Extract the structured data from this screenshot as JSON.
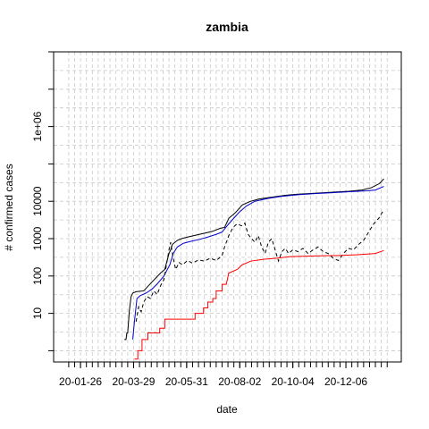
{
  "chart_data": {
    "type": "line",
    "title": "zambia",
    "xlabel": "date",
    "ylabel": "# confirmed cases",
    "y_scale": "log10",
    "ylim": [
      0.5,
      100000000
    ],
    "y_ticks": [
      10,
      100,
      1000,
      10000,
      1000000
    ],
    "y_tick_labels": [
      "10",
      "100",
      "1000",
      "10000",
      "1e+06"
    ],
    "x_tick_labels": [
      "20-01-26",
      "20-03-29",
      "20-05-31",
      "20-08-02",
      "20-10-04",
      "20-12-06"
    ],
    "xlim": [
      "2020-01-10",
      "2021-01-28"
    ],
    "x_minor_tick_interval_days": 7,
    "grid": true,
    "series": [
      {
        "line_style": "solid",
        "color": "#000000",
        "points": [
          [
            "2020-03-18",
            2
          ],
          [
            "2020-03-20",
            2
          ],
          [
            "2020-03-21",
            3
          ],
          [
            "2020-03-22",
            3
          ],
          [
            "2020-03-24",
            12
          ],
          [
            "2020-03-26",
            28
          ],
          [
            "2020-03-28",
            35
          ],
          [
            "2020-04-01",
            38
          ],
          [
            "2020-04-10",
            40
          ],
          [
            "2020-04-20",
            70
          ],
          [
            "2020-04-30",
            120
          ],
          [
            "2020-05-05",
            150
          ],
          [
            "2020-05-10",
            400
          ],
          [
            "2020-05-12",
            500
          ],
          [
            "2020-05-14",
            700
          ],
          [
            "2020-05-20",
            900
          ],
          [
            "2020-05-25",
            1000
          ],
          [
            "2020-06-01",
            1100
          ],
          [
            "2020-06-15",
            1300
          ],
          [
            "2020-06-30",
            1550
          ],
          [
            "2020-07-10",
            1900
          ],
          [
            "2020-07-15",
            2000
          ],
          [
            "2020-07-20",
            3500
          ],
          [
            "2020-07-28",
            5000
          ],
          [
            "2020-08-05",
            8000
          ],
          [
            "2020-08-15",
            10000
          ],
          [
            "2020-08-25",
            11500
          ],
          [
            "2020-09-10",
            13000
          ],
          [
            "2020-09-25",
            14500
          ],
          [
            "2020-10-10",
            15500
          ],
          [
            "2020-10-25",
            16200
          ],
          [
            "2020-11-10",
            17000
          ],
          [
            "2020-11-25",
            17800
          ],
          [
            "2020-12-10",
            18500
          ],
          [
            "2020-12-25",
            20000
          ],
          [
            "2021-01-05",
            23000
          ],
          [
            "2021-01-15",
            30000
          ],
          [
            "2021-01-20",
            40000
          ]
        ]
      },
      {
        "line_style": "solid",
        "color": "#0000cc",
        "points": [
          [
            "2020-03-28",
            2
          ],
          [
            "2020-03-30",
            6
          ],
          [
            "2020-04-02",
            25
          ],
          [
            "2020-04-06",
            30
          ],
          [
            "2020-04-13",
            35
          ],
          [
            "2020-04-20",
            45
          ],
          [
            "2020-04-27",
            65
          ],
          [
            "2020-05-04",
            100
          ],
          [
            "2020-05-11",
            200
          ],
          [
            "2020-05-15",
            400
          ],
          [
            "2020-05-20",
            600
          ],
          [
            "2020-05-27",
            750
          ],
          [
            "2020-06-05",
            850
          ],
          [
            "2020-06-15",
            950
          ],
          [
            "2020-06-25",
            1100
          ],
          [
            "2020-07-05",
            1300
          ],
          [
            "2020-07-12",
            1500
          ],
          [
            "2020-07-20",
            2500
          ],
          [
            "2020-08-01",
            5000
          ],
          [
            "2020-08-10",
            7500
          ],
          [
            "2020-08-20",
            10000
          ],
          [
            "2020-09-05",
            12000
          ],
          [
            "2020-09-20",
            13500
          ],
          [
            "2020-10-10",
            15000
          ],
          [
            "2020-10-30",
            16000
          ],
          [
            "2020-11-20",
            17000
          ],
          [
            "2020-12-10",
            18000
          ],
          [
            "2020-12-31",
            19000
          ],
          [
            "2021-01-10",
            20000
          ],
          [
            "2021-01-20",
            25000
          ]
        ]
      },
      {
        "line_style": "dashed",
        "color": "#000000",
        "points": [
          [
            "2020-04-01",
            6
          ],
          [
            "2020-04-04",
            15
          ],
          [
            "2020-04-07",
            11
          ],
          [
            "2020-04-10",
            20
          ],
          [
            "2020-04-14",
            28
          ],
          [
            "2020-04-18",
            25
          ],
          [
            "2020-04-22",
            40
          ],
          [
            "2020-04-26",
            32
          ],
          [
            "2020-04-30",
            55
          ],
          [
            "2020-05-04",
            80
          ],
          [
            "2020-05-07",
            200
          ],
          [
            "2020-05-10",
            500
          ],
          [
            "2020-05-12",
            800
          ],
          [
            "2020-05-15",
            300
          ],
          [
            "2020-05-18",
            150
          ],
          [
            "2020-05-22",
            230
          ],
          [
            "2020-05-26",
            200
          ],
          [
            "2020-06-01",
            260
          ],
          [
            "2020-06-07",
            220
          ],
          [
            "2020-06-14",
            270
          ],
          [
            "2020-06-21",
            250
          ],
          [
            "2020-06-28",
            300
          ],
          [
            "2020-07-05",
            260
          ],
          [
            "2020-07-12",
            350
          ],
          [
            "2020-07-15",
            600
          ],
          [
            "2020-07-20",
            1200
          ],
          [
            "2020-07-25",
            2000
          ],
          [
            "2020-07-30",
            2500
          ],
          [
            "2020-08-04",
            2200
          ],
          [
            "2020-08-08",
            2600
          ],
          [
            "2020-08-12",
            1300
          ],
          [
            "2020-08-16",
            1000
          ],
          [
            "2020-08-20",
            800
          ],
          [
            "2020-08-24",
            1200
          ],
          [
            "2020-08-28",
            600
          ],
          [
            "2020-09-01",
            400
          ],
          [
            "2020-09-05",
            800
          ],
          [
            "2020-09-09",
            1000
          ],
          [
            "2020-09-13",
            500
          ],
          [
            "2020-09-17",
            250
          ],
          [
            "2020-09-21",
            450
          ],
          [
            "2020-09-25",
            550
          ],
          [
            "2020-09-29",
            400
          ],
          [
            "2020-10-04",
            500
          ],
          [
            "2020-10-10",
            450
          ],
          [
            "2020-10-16",
            550
          ],
          [
            "2020-10-22",
            400
          ],
          [
            "2020-10-28",
            500
          ],
          [
            "2020-11-03",
            600
          ],
          [
            "2020-11-09",
            450
          ],
          [
            "2020-11-15",
            400
          ],
          [
            "2020-11-21",
            300
          ],
          [
            "2020-11-27",
            260
          ],
          [
            "2020-12-03",
            400
          ],
          [
            "2020-12-09",
            550
          ],
          [
            "2020-12-15",
            500
          ],
          [
            "2020-12-21",
            700
          ],
          [
            "2020-12-27",
            900
          ],
          [
            "2021-01-02",
            1500
          ],
          [
            "2021-01-08",
            2500
          ],
          [
            "2021-01-14",
            3500
          ],
          [
            "2021-01-20",
            6000
          ]
        ]
      },
      {
        "line_style": "solid",
        "color": "#ff0000",
        "points": [
          [
            "2020-03-30",
            0.6
          ],
          [
            "2020-04-03",
            0.6
          ],
          [
            "2020-04-03",
            1
          ],
          [
            "2020-04-08",
            1
          ],
          [
            "2020-04-08",
            2
          ],
          [
            "2020-04-15",
            2
          ],
          [
            "2020-04-15",
            3
          ],
          [
            "2020-04-29",
            3
          ],
          [
            "2020-04-29",
            4
          ],
          [
            "2020-05-05",
            4
          ],
          [
            "2020-05-05",
            7
          ],
          [
            "2020-06-10",
            7
          ],
          [
            "2020-06-10",
            10
          ],
          [
            "2020-06-20",
            10
          ],
          [
            "2020-06-20",
            14
          ],
          [
            "2020-06-25",
            14
          ],
          [
            "2020-06-25",
            20
          ],
          [
            "2020-07-01",
            20
          ],
          [
            "2020-07-01",
            25
          ],
          [
            "2020-07-05",
            25
          ],
          [
            "2020-07-05",
            40
          ],
          [
            "2020-07-12",
            40
          ],
          [
            "2020-07-12",
            60
          ],
          [
            "2020-07-17",
            60
          ],
          [
            "2020-07-20",
            120
          ],
          [
            "2020-07-30",
            150
          ],
          [
            "2020-08-05",
            200
          ],
          [
            "2020-08-15",
            250
          ],
          [
            "2020-08-30",
            280
          ],
          [
            "2020-09-15",
            300
          ],
          [
            "2020-10-01",
            330
          ],
          [
            "2020-10-20",
            340
          ],
          [
            "2020-11-10",
            350
          ],
          [
            "2020-12-01",
            355
          ],
          [
            "2020-12-20",
            370
          ],
          [
            "2021-01-10",
            400
          ],
          [
            "2021-01-20",
            480
          ]
        ]
      }
    ]
  }
}
